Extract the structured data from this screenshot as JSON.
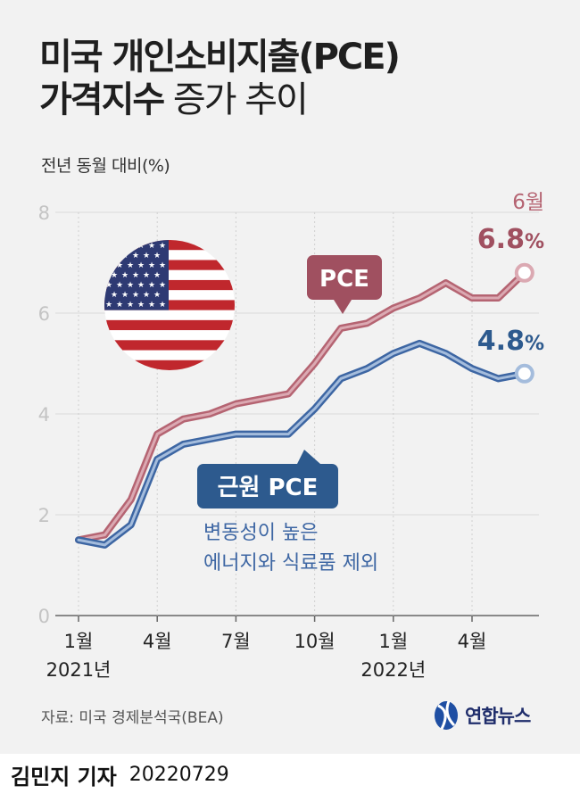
{
  "title": {
    "line1": "미국 개인소비지출(PCE)",
    "line2_bold": "가격지수",
    "line2_light": " 증가 추이"
  },
  "subtitle": "전년 동월 대비(%)",
  "chart_data": {
    "type": "line",
    "x": [
      "2021-01",
      "2021-02",
      "2021-03",
      "2021-04",
      "2021-05",
      "2021-06",
      "2021-07",
      "2021-08",
      "2021-09",
      "2021-10",
      "2021-11",
      "2021-12",
      "2022-01",
      "2022-02",
      "2022-03",
      "2022-04",
      "2022-05",
      "2022-06"
    ],
    "x_tick_labels": [
      "1월",
      "4월",
      "7월",
      "10월",
      "1월",
      "4월"
    ],
    "x_year_labels": [
      "2021년",
      "2022년"
    ],
    "ylim": [
      0,
      8
    ],
    "y_ticks": [
      "0",
      "2",
      "4",
      "6",
      "8"
    ],
    "grid": true,
    "series": [
      {
        "name": "PCE",
        "color": "#b56472",
        "values": [
          1.5,
          1.6,
          2.3,
          3.6,
          3.9,
          4.0,
          4.2,
          4.3,
          4.4,
          5.0,
          5.7,
          5.8,
          6.1,
          6.3,
          6.6,
          6.3,
          6.3,
          6.8
        ],
        "end_label": "6.8",
        "end_unit": "%",
        "end_period": "6월"
      },
      {
        "name": "근원 PCE",
        "color": "#3d66a3",
        "values": [
          1.5,
          1.4,
          1.8,
          3.1,
          3.4,
          3.5,
          3.6,
          3.6,
          3.6,
          4.1,
          4.7,
          4.9,
          5.2,
          5.4,
          5.2,
          4.9,
          4.7,
          4.8
        ],
        "end_label": "4.8",
        "end_unit": "%",
        "note": [
          "변동성이 높은",
          "에너지와 식료품 제외"
        ]
      }
    ]
  },
  "source": "자료: 미국 경제분석국(BEA)",
  "logo": "연합뉴스",
  "author": "김민지 기자",
  "date": "20220729"
}
